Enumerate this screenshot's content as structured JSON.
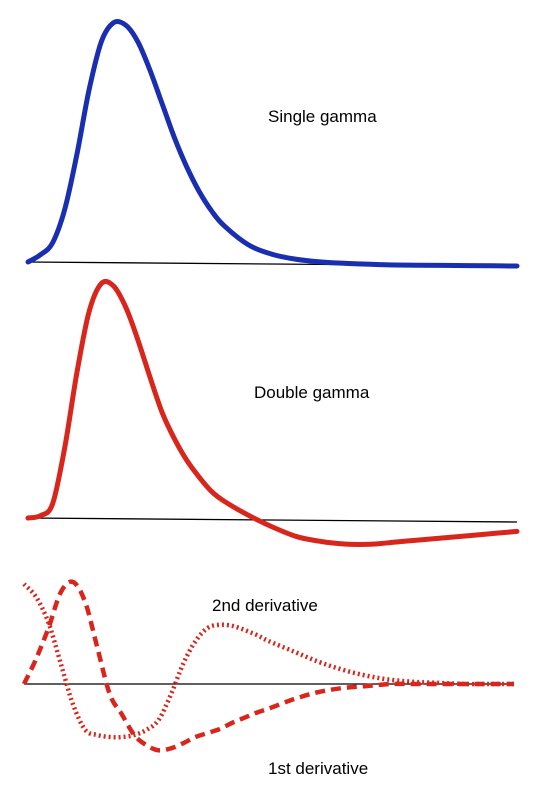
{
  "chart_data": [
    {
      "type": "line",
      "x_range": [
        0,
        20
      ],
      "grid": false,
      "series": [
        {
          "name": "Single gamma",
          "color": "#1a2fb0",
          "style": "solid",
          "x": [
            0,
            0.5,
            1,
            1.5,
            2,
            2.5,
            3,
            3.5,
            4,
            4.5,
            5,
            5.5,
            6,
            6.5,
            7,
            7.5,
            8,
            9,
            10,
            11,
            12,
            13,
            14,
            15,
            16,
            17,
            18,
            19,
            20
          ],
          "y": [
            0,
            0.03,
            0.08,
            0.22,
            0.45,
            0.72,
            0.92,
            1.0,
            0.99,
            0.92,
            0.8,
            0.66,
            0.52,
            0.4,
            0.3,
            0.22,
            0.16,
            0.08,
            0.04,
            0.02,
            0.01,
            0.005,
            0.002,
            0.0,
            0.0,
            0.0,
            0.0,
            0.0,
            0.0
          ]
        }
      ]
    },
    {
      "type": "line",
      "x_range": [
        0,
        20
      ],
      "grid": false,
      "series": [
        {
          "name": "Double gamma",
          "color": "#d9261c",
          "style": "solid",
          "x": [
            0,
            0.5,
            1,
            1.5,
            2,
            2.5,
            3,
            3.5,
            4,
            4.5,
            5,
            5.5,
            6,
            6.5,
            7,
            7.5,
            8,
            9,
            10,
            11,
            12,
            13,
            14,
            15,
            16,
            17,
            18,
            19,
            20
          ],
          "y": [
            0,
            0.01,
            0.06,
            0.3,
            0.62,
            0.88,
            1.0,
            0.99,
            0.9,
            0.76,
            0.6,
            0.45,
            0.34,
            0.25,
            0.18,
            0.12,
            0.08,
            0.02,
            -0.03,
            -0.07,
            -0.09,
            -0.1,
            -0.1,
            -0.09,
            -0.08,
            -0.07,
            -0.06,
            -0.05,
            -0.04
          ]
        }
      ]
    },
    {
      "type": "line",
      "x_range": [
        0,
        20
      ],
      "grid": false,
      "series": [
        {
          "name": "2nd derivative",
          "color": "#d9261c",
          "style": "dotted",
          "x": [
            0,
            0.5,
            1,
            1.5,
            2,
            2.5,
            3,
            3.5,
            4,
            4.5,
            5,
            5.5,
            6,
            6.5,
            7,
            7.5,
            8,
            8.5,
            9,
            9.5,
            10,
            11,
            12,
            13,
            14,
            15,
            16,
            17,
            18,
            19,
            20
          ],
          "y": [
            0.98,
            0.85,
            0.6,
            0.2,
            -0.2,
            -0.45,
            -0.5,
            -0.52,
            -0.52,
            -0.5,
            -0.45,
            -0.35,
            -0.1,
            0.2,
            0.42,
            0.55,
            0.58,
            0.57,
            0.53,
            0.48,
            0.42,
            0.32,
            0.22,
            0.14,
            0.08,
            0.04,
            0.02,
            0.01,
            0.0,
            0.0,
            0.0
          ]
        },
        {
          "name": "1st derivative",
          "color": "#d9261c",
          "style": "dashed",
          "x": [
            0,
            0.5,
            1,
            1.5,
            2,
            2.5,
            3,
            3.5,
            4,
            4.5,
            5,
            5.5,
            6,
            6.5,
            7,
            7.5,
            8,
            8.5,
            9,
            9.5,
            10,
            11,
            12,
            13,
            14,
            15,
            16,
            17,
            18,
            19,
            20
          ],
          "y": [
            0.0,
            0.25,
            0.55,
            0.9,
            1.0,
            0.8,
            0.35,
            -0.1,
            -0.3,
            -0.5,
            -0.6,
            -0.65,
            -0.63,
            -0.58,
            -0.52,
            -0.48,
            -0.44,
            -0.38,
            -0.33,
            -0.28,
            -0.24,
            -0.15,
            -0.08,
            -0.04,
            -0.02,
            0.0,
            0.0,
            0.0,
            0.0,
            0.0,
            0.0
          ]
        }
      ]
    }
  ]
}
